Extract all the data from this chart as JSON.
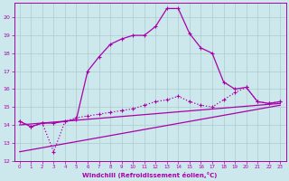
{
  "xlabel": "Windchill (Refroidissement éolien,°C)",
  "bg_color": "#cce8ec",
  "line_color": "#aa00aa",
  "grid_color": "#aacccc",
  "xlim": [
    -0.5,
    23.5
  ],
  "ylim": [
    12,
    20.8
  ],
  "xticks": [
    0,
    1,
    2,
    3,
    4,
    5,
    6,
    7,
    8,
    9,
    10,
    11,
    12,
    13,
    14,
    15,
    16,
    17,
    18,
    19,
    20,
    21,
    22,
    23
  ],
  "yticks": [
    12,
    13,
    14,
    15,
    16,
    17,
    18,
    19,
    20
  ],
  "curve1_x": [
    0,
    1,
    2,
    3,
    4,
    5,
    6,
    7,
    8,
    9,
    10,
    11,
    12,
    13,
    14,
    15,
    16,
    17,
    18,
    19,
    20,
    21,
    22,
    23
  ],
  "curve1_y": [
    14.2,
    13.9,
    14.1,
    14.1,
    14.2,
    14.3,
    17.0,
    17.8,
    18.5,
    18.8,
    19.0,
    19.0,
    19.5,
    20.5,
    20.5,
    19.1,
    18.3,
    18.0,
    16.4,
    16.0,
    16.1,
    15.3,
    15.2,
    15.3
  ],
  "curve2_x": [
    0,
    1,
    2,
    3,
    4,
    5,
    6,
    7,
    8,
    9,
    10,
    11,
    12,
    13,
    14,
    15,
    16,
    17,
    18,
    19,
    20,
    21,
    22,
    23
  ],
  "curve2_y": [
    14.2,
    13.9,
    14.1,
    12.5,
    14.2,
    14.4,
    14.5,
    14.6,
    14.7,
    14.8,
    14.9,
    15.1,
    15.3,
    15.4,
    15.6,
    15.3,
    15.1,
    15.0,
    15.4,
    15.8,
    16.1,
    15.3,
    15.2,
    15.3
  ],
  "line3_x": [
    0,
    23
  ],
  "line3_y": [
    14.0,
    15.2
  ],
  "line4_x": [
    0,
    23
  ],
  "line4_y": [
    12.5,
    15.1
  ]
}
